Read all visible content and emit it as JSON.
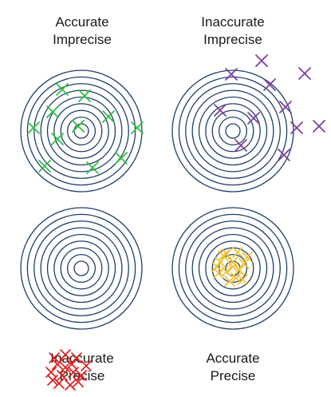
{
  "panels": [
    {
      "id": "top-left",
      "line1": "Accurate",
      "line2": "Imprecise",
      "marker_color": "#2fbf3f"
    },
    {
      "id": "top-right",
      "line1": "Inaccurate",
      "line2": "Imprecise",
      "marker_color": "#7b3fa3"
    },
    {
      "id": "bottom-left",
      "line1": "Inaccurate",
      "line2": "Precise",
      "marker_color": "#e01b1b"
    },
    {
      "id": "bottom-right",
      "line1": "Accurate",
      "line2": "Precise",
      "marker_color": "#f2c12e"
    }
  ],
  "target": {
    "ring_count": 9,
    "ring_color": "#1f3f6b"
  },
  "markers": {
    "top-left": [
      [
        -24,
        -52
      ],
      [
        4,
        -44
      ],
      [
        -36,
        -24
      ],
      [
        34,
        -18
      ],
      [
        -60,
        -4
      ],
      [
        -4,
        -6
      ],
      [
        70,
        -4
      ],
      [
        -30,
        10
      ],
      [
        50,
        34
      ],
      [
        -46,
        44
      ],
      [
        14,
        46
      ]
    ],
    "top-right": [
      [
        36,
        -88
      ],
      [
        -2,
        -71
      ],
      [
        90,
        -72
      ],
      [
        46,
        -58
      ],
      [
        66,
        -30
      ],
      [
        -16,
        -26
      ],
      [
        26,
        -16
      ],
      [
        80,
        -4
      ],
      [
        108,
        -6
      ],
      [
        10,
        18
      ],
      [
        64,
        30
      ]
    ],
    "bottom-left": [
      [
        -30,
        120
      ],
      [
        -20,
        108
      ],
      [
        -12,
        120
      ],
      [
        -38,
        130
      ],
      [
        -24,
        134
      ],
      [
        -10,
        130
      ],
      [
        -28,
        144
      ],
      [
        -14,
        146
      ],
      [
        0,
        134
      ],
      [
        -34,
        112
      ],
      [
        -6,
        112
      ],
      [
        -20,
        124
      ],
      [
        -36,
        140
      ],
      [
        -4,
        142
      ],
      [
        6,
        122
      ]
    ],
    "bottom-right": [
      [
        -8,
        -18
      ],
      [
        6,
        -20
      ],
      [
        -16,
        -8
      ],
      [
        0,
        -8
      ],
      [
        14,
        -6
      ],
      [
        -8,
        4
      ],
      [
        8,
        2
      ],
      [
        -18,
        6
      ],
      [
        4,
        12
      ],
      [
        -4,
        16
      ],
      [
        12,
        14
      ],
      [
        -12,
        -16
      ],
      [
        18,
        -14
      ],
      [
        0,
        -2
      ],
      [
        -20,
        -2
      ]
    ]
  }
}
